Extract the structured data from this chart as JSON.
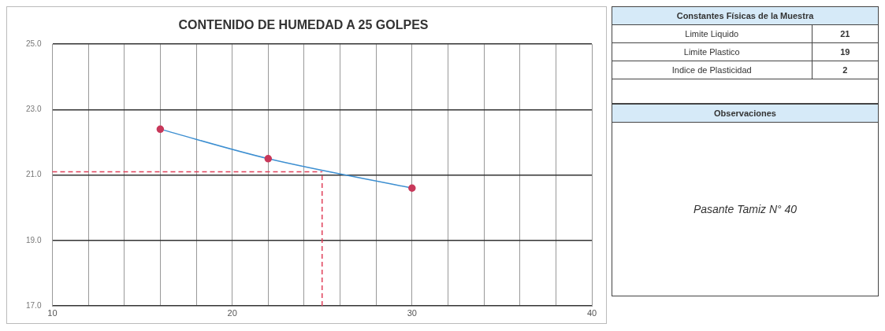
{
  "chart_data": [
    {
      "type": "line",
      "title": "CONTENIDO DE HUMEDAD A 25 GOLPES",
      "x": [
        16,
        22,
        30
      ],
      "series": [
        {
          "color": "#3d8fd1",
          "colors": [
            "#c8385a",
            "#c8385a",
            "#c8385a"
          ],
          "values": [
            22.4,
            21.5,
            20.6
          ]
        }
      ],
      "xlim": [
        10,
        40
      ],
      "xticks": [
        10,
        {
          "value": 12,
          "label": null
        },
        {
          "value": 14,
          "label": null
        },
        {
          "value": 16,
          "label": null
        },
        {
          "value": 18,
          "label": null
        },
        20,
        {
          "value": 22,
          "label": null
        },
        {
          "value": 24,
          "label": null
        },
        {
          "value": 26,
          "label": null
        },
        {
          "value": 28,
          "label": null
        },
        30,
        {
          "value": 32,
          "label": null
        },
        {
          "value": 34,
          "label": null
        },
        {
          "value": 36,
          "label": null
        },
        {
          "value": 38,
          "label": null
        },
        40
      ],
      "ylim": [
        17,
        25
      ],
      "yticks": [
        {
          "value": 17,
          "label": "17.0"
        },
        {
          "value": 19,
          "label": "19.0"
        },
        {
          "value": 21,
          "label": "21.0"
        },
        {
          "value": 23,
          "label": "23.0"
        },
        {
          "value": 25,
          "label": "25.0"
        }
      ],
      "grid": true,
      "marker": "circle",
      "ref_lines": [
        {
          "axis": "y",
          "value": 21.1,
          "color": "#e0405a",
          "line_style": "dashed"
        },
        {
          "axis": "x",
          "value": 25,
          "color": "#e0405a",
          "line_style": "dashed"
        }
      ]
    },
    {
      "type": "other",
      "title": "Constantes Físicas de la Muestra",
      "categories": [
        "Limite Liquido",
        "Limite Plastico",
        "Indice de Plasticidad"
      ],
      "values": [
        21,
        19,
        2
      ],
      "data_labels": true,
      "annotations": [
        "Observaciones",
        "Pasante Tamiz N° 40"
      ]
    }
  ]
}
